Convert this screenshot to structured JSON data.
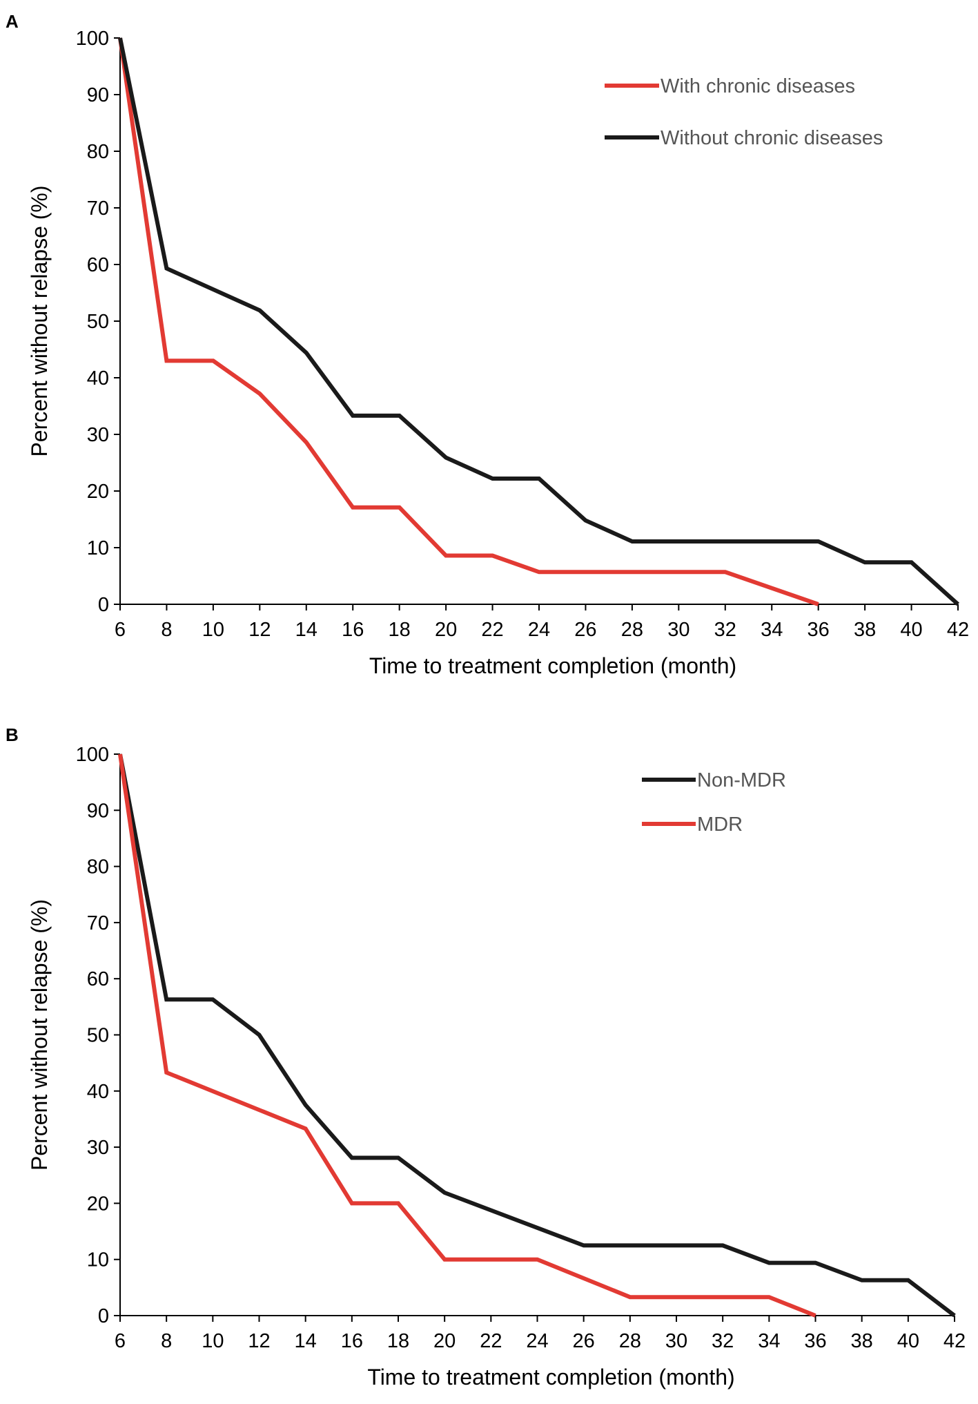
{
  "chart_data": [
    {
      "panel": "A",
      "type": "line",
      "title": "",
      "xlabel": "Time to treatment completion (month)",
      "ylabel": "Percent without relapse (%)",
      "xlim": [
        6,
        42
      ],
      "ylim": [
        0,
        100
      ],
      "xticks": [
        6,
        8,
        10,
        12,
        14,
        16,
        18,
        20,
        22,
        24,
        26,
        28,
        30,
        32,
        34,
        36,
        38,
        40,
        42
      ],
      "yticks": [
        0,
        10,
        20,
        30,
        40,
        50,
        60,
        70,
        80,
        90,
        100
      ],
      "legend_position": "top-right",
      "series": [
        {
          "name": "With chronic diseases",
          "color": "#e23a33",
          "points": [
            [
              6,
              100
            ],
            [
              8,
              43
            ],
            [
              10,
              43
            ],
            [
              12,
              37.2
            ],
            [
              14,
              28.6
            ],
            [
              16,
              17.1
            ],
            [
              18,
              17.1
            ],
            [
              20,
              8.6
            ],
            [
              22,
              8.6
            ],
            [
              24,
              5.7
            ],
            [
              32,
              5.7
            ],
            [
              36,
              0
            ]
          ]
        },
        {
          "name": "Without chronic diseases",
          "color": "#1a1a1a",
          "points": [
            [
              6,
              100
            ],
            [
              8,
              59.3
            ],
            [
              12,
              51.9
            ],
            [
              14,
              44.4
            ],
            [
              16,
              33.3
            ],
            [
              18,
              33.3
            ],
            [
              20,
              25.9
            ],
            [
              22,
              22.2
            ],
            [
              24,
              22.2
            ],
            [
              26,
              14.8
            ],
            [
              28,
              11.1
            ],
            [
              36,
              11.1
            ],
            [
              38,
              7.4
            ],
            [
              40,
              7.4
            ],
            [
              42,
              0
            ]
          ]
        }
      ]
    },
    {
      "panel": "B",
      "type": "line",
      "title": "",
      "xlabel": "Time to treatment completion (month)",
      "ylabel": "Percent without relapse (%)",
      "xlim": [
        6,
        42
      ],
      "ylim": [
        0,
        100
      ],
      "xticks": [
        6,
        8,
        10,
        12,
        14,
        16,
        18,
        20,
        22,
        24,
        26,
        28,
        30,
        32,
        34,
        36,
        38,
        40,
        42
      ],
      "yticks": [
        0,
        10,
        20,
        30,
        40,
        50,
        60,
        70,
        80,
        90,
        100
      ],
      "legend_position": "top-right",
      "series": [
        {
          "name": "Non-MDR",
          "color": "#1a1a1a",
          "points": [
            [
              6,
              100
            ],
            [
              8,
              56.3
            ],
            [
              10,
              56.3
            ],
            [
              12,
              50
            ],
            [
              14,
              37.5
            ],
            [
              16,
              28.1
            ],
            [
              18,
              28.1
            ],
            [
              20,
              21.9
            ],
            [
              26,
              12.5
            ],
            [
              32,
              12.5
            ],
            [
              34,
              9.4
            ],
            [
              36,
              9.4
            ],
            [
              38,
              6.3
            ],
            [
              40,
              6.3
            ],
            [
              42,
              0
            ]
          ]
        },
        {
          "name": "MDR",
          "color": "#e23a33",
          "points": [
            [
              6,
              100
            ],
            [
              8,
              43.3
            ],
            [
              14,
              33.3
            ],
            [
              16,
              20
            ],
            [
              18,
              20
            ],
            [
              20,
              10
            ],
            [
              24,
              10
            ],
            [
              28,
              3.3
            ],
            [
              34,
              3.3
            ],
            [
              36,
              0
            ]
          ]
        }
      ]
    }
  ]
}
